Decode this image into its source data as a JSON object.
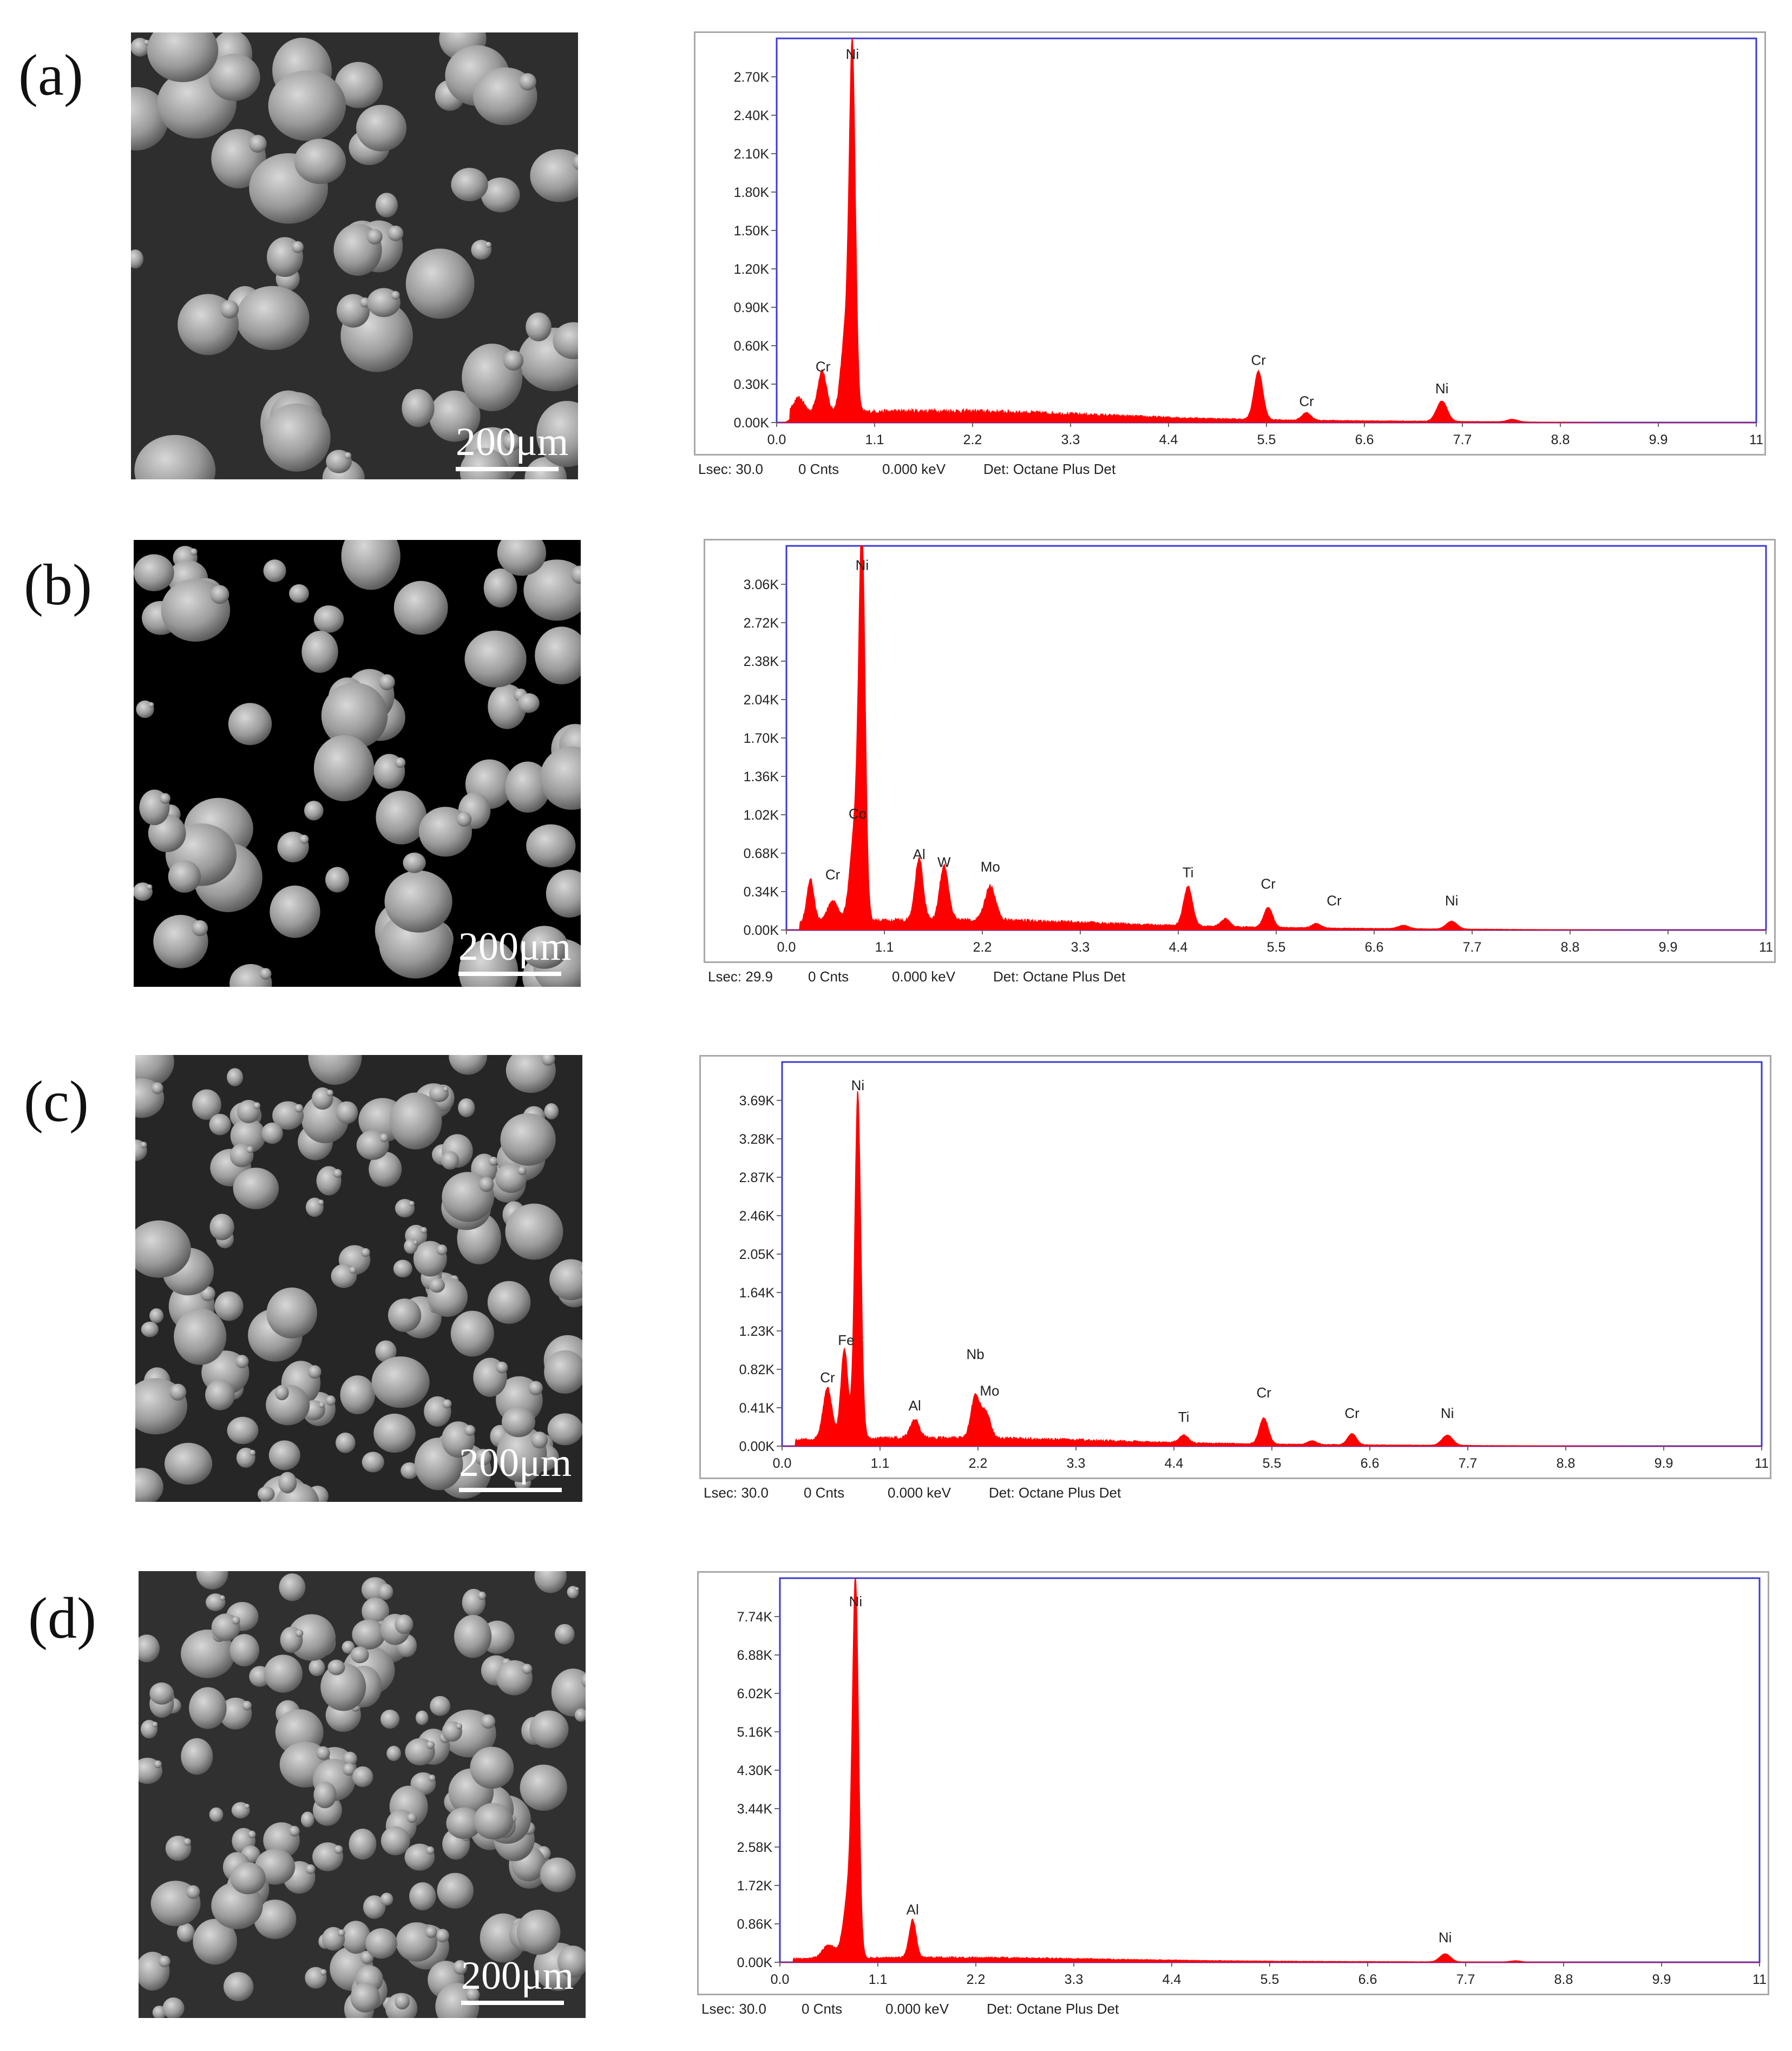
{
  "chart_data": [
    {
      "type": "area",
      "panel": "(a)",
      "x_ticks": [
        "0.0",
        "1.1",
        "2.2",
        "3.3",
        "4.4",
        "5.5",
        "6.6",
        "7.7",
        "8.8",
        "9.9",
        "11"
      ],
      "y_ticks": [
        "0.00K",
        "0.30K",
        "0.60K",
        "0.90K",
        "1.20K",
        "1.50K",
        "1.80K",
        "2.10K",
        "2.40K",
        "2.70K"
      ],
      "xlim": [
        0,
        11
      ],
      "ylim": [
        0,
        3.0
      ],
      "background": 0.1,
      "peaks": [
        {
          "x": 0.25,
          "y": 0.12,
          "w": 0.06
        },
        {
          "x": 0.51,
          "y": 0.33,
          "w": 0.05
        },
        {
          "x": 0.77,
          "y": 0.6,
          "w": 0.05
        },
        {
          "x": 0.85,
          "y": 2.78,
          "w": 0.035
        },
        {
          "x": 5.41,
          "y": 0.38,
          "w": 0.05
        },
        {
          "x": 5.95,
          "y": 0.06,
          "w": 0.05
        },
        {
          "x": 7.47,
          "y": 0.16,
          "w": 0.06
        },
        {
          "x": 8.26,
          "y": 0.02,
          "w": 0.06
        }
      ],
      "labels": [
        {
          "text": "Ni",
          "x": 0.85,
          "y": 2.78
        },
        {
          "text": "Cr",
          "x": 0.52,
          "y": 0.34
        },
        {
          "text": "Cr",
          "x": 5.41,
          "y": 0.39
        },
        {
          "text": "Cr",
          "x": 5.95,
          "y": 0.07
        },
        {
          "text": "Ni",
          "x": 7.47,
          "y": 0.17
        }
      ],
      "footer": {
        "lsec": "Lsec: 30.0",
        "cnts": "0 Cnts",
        "kev": "0.000 keV",
        "det": "Det: Octane Plus Det"
      },
      "scale_bar": "200μm"
    },
    {
      "type": "area",
      "panel": "(b)",
      "x_ticks": [
        "0.0",
        "1.1",
        "2.2",
        "3.3",
        "4.4",
        "5.5",
        "6.6",
        "7.7",
        "8.8",
        "9.9",
        "11"
      ],
      "y_ticks": [
        "0.00K",
        "0.34K",
        "0.68K",
        "1.02K",
        "1.36K",
        "1.70K",
        "2.04K",
        "2.38K",
        "2.72K",
        "3.06K"
      ],
      "xlim": [
        0,
        11
      ],
      "ylim": [
        0,
        3.4
      ],
      "background": 0.1,
      "peaks": [
        {
          "x": 0.27,
          "y": 0.38,
          "w": 0.04
        },
        {
          "x": 0.52,
          "y": 0.18,
          "w": 0.06
        },
        {
          "x": 0.78,
          "y": 0.9,
          "w": 0.06
        },
        {
          "x": 0.85,
          "y": 3.12,
          "w": 0.035
        },
        {
          "x": 1.49,
          "y": 0.55,
          "w": 0.045
        },
        {
          "x": 1.77,
          "y": 0.48,
          "w": 0.05
        },
        {
          "x": 2.29,
          "y": 0.3,
          "w": 0.06
        },
        {
          "x": 4.51,
          "y": 0.35,
          "w": 0.05
        },
        {
          "x": 4.93,
          "y": 0.07,
          "w": 0.05
        },
        {
          "x": 5.41,
          "y": 0.18,
          "w": 0.05
        },
        {
          "x": 5.95,
          "y": 0.04,
          "w": 0.05
        },
        {
          "x": 6.93,
          "y": 0.03,
          "w": 0.06
        },
        {
          "x": 7.47,
          "y": 0.07,
          "w": 0.06
        }
      ],
      "labels": [
        {
          "text": "Ni",
          "x": 0.85,
          "y": 3.12
        },
        {
          "text": "Co",
          "x": 0.8,
          "y": 0.92
        },
        {
          "text": "Cr",
          "x": 0.52,
          "y": 0.38
        },
        {
          "text": "Al",
          "x": 1.49,
          "y": 0.56
        },
        {
          "text": "W",
          "x": 1.77,
          "y": 0.49
        },
        {
          "text": "Mo",
          "x": 2.29,
          "y": 0.45
        },
        {
          "text": "Ti",
          "x": 4.51,
          "y": 0.4
        },
        {
          "text": "Cr",
          "x": 5.41,
          "y": 0.3
        },
        {
          "text": "Cr",
          "x": 6.15,
          "y": 0.15
        },
        {
          "text": "Ni",
          "x": 7.47,
          "y": 0.15
        }
      ],
      "footer": {
        "lsec": "Lsec: 29.9",
        "cnts": "0 Cnts",
        "kev": "0.000 keV",
        "det": "Det: Octane Plus Det"
      },
      "scale_bar": "200μm"
    },
    {
      "type": "area",
      "panel": "(c)",
      "x_ticks": [
        "0.0",
        "1.1",
        "2.2",
        "3.3",
        "4.4",
        "5.5",
        "6.6",
        "7.7",
        "8.8",
        "9.9",
        "11"
      ],
      "y_ticks": [
        "0.00K",
        "0.41K",
        "0.82K",
        "1.23K",
        "1.64K",
        "2.05K",
        "2.46K",
        "2.87K",
        "3.28K",
        "3.69K"
      ],
      "xlim": [
        0,
        11
      ],
      "ylim": [
        0,
        4.1
      ],
      "background": 0.1,
      "peaks": [
        {
          "x": 0.51,
          "y": 0.55,
          "w": 0.05
        },
        {
          "x": 0.7,
          "y": 0.97,
          "w": 0.04
        },
        {
          "x": 0.85,
          "y": 3.72,
          "w": 0.035
        },
        {
          "x": 1.49,
          "y": 0.2,
          "w": 0.05
        },
        {
          "x": 2.17,
          "y": 0.45,
          "w": 0.05
        },
        {
          "x": 2.29,
          "y": 0.28,
          "w": 0.05
        },
        {
          "x": 4.51,
          "y": 0.08,
          "w": 0.05
        },
        {
          "x": 5.41,
          "y": 0.28,
          "w": 0.05
        },
        {
          "x": 5.95,
          "y": 0.04,
          "w": 0.05
        },
        {
          "x": 6.4,
          "y": 0.12,
          "w": 0.05
        },
        {
          "x": 7.47,
          "y": 0.11,
          "w": 0.06
        }
      ],
      "labels": [
        {
          "text": "Ni",
          "x": 0.85,
          "y": 3.72
        },
        {
          "text": "Fe",
          "x": 0.72,
          "y": 1.0
        },
        {
          "text": "Cr",
          "x": 0.51,
          "y": 0.6
        },
        {
          "text": "Al",
          "x": 1.49,
          "y": 0.3
        },
        {
          "text": "Nb",
          "x": 2.17,
          "y": 0.85
        },
        {
          "text": "Mo",
          "x": 2.33,
          "y": 0.46
        },
        {
          "text": "Ti",
          "x": 4.51,
          "y": 0.18
        },
        {
          "text": "Cr",
          "x": 5.41,
          "y": 0.44
        },
        {
          "text": "Cr",
          "x": 6.4,
          "y": 0.22
        },
        {
          "text": "Ni",
          "x": 7.47,
          "y": 0.22
        }
      ],
      "footer": {
        "lsec": "Lsec: 30.0",
        "cnts": "0 Cnts",
        "kev": "0.000 keV",
        "det": "Det: Octane Plus Det"
      },
      "scale_bar": "200μm"
    },
    {
      "type": "area",
      "panel": "(d)",
      "x_ticks": [
        "0.0",
        "1.1",
        "2.2",
        "3.3",
        "4.4",
        "5.5",
        "6.6",
        "7.7",
        "8.8",
        "9.9",
        "11"
      ],
      "y_ticks": [
        "0.00K",
        "0.86K",
        "1.72K",
        "2.58K",
        "3.44K",
        "4.30K",
        "5.16K",
        "6.02K",
        "6.88K",
        "7.74K"
      ],
      "xlim": [
        0,
        11
      ],
      "ylim": [
        0,
        8.6
      ],
      "background": 0.12,
      "peaks": [
        {
          "x": 0.55,
          "y": 0.3,
          "w": 0.07
        },
        {
          "x": 0.78,
          "y": 1.6,
          "w": 0.06
        },
        {
          "x": 0.85,
          "y": 7.8,
          "w": 0.035
        },
        {
          "x": 1.49,
          "y": 0.85,
          "w": 0.04
        },
        {
          "x": 7.47,
          "y": 0.18,
          "w": 0.06
        },
        {
          "x": 8.26,
          "y": 0.03,
          "w": 0.06
        }
      ],
      "labels": [
        {
          "text": "Ni",
          "x": 0.85,
          "y": 7.8
        },
        {
          "text": "Al",
          "x": 1.49,
          "y": 0.9
        },
        {
          "text": "Ni",
          "x": 7.47,
          "y": 0.28
        }
      ],
      "footer": {
        "lsec": "Lsec: 30.0",
        "cnts": "0 Cnts",
        "kev": "0.000 keV",
        "det": "Det: Octane Plus Det"
      },
      "scale_bar": "200μm"
    }
  ],
  "colors": {
    "spectrum": "#ff0000",
    "frame": "#3a3ad8",
    "axis": "#666666",
    "text": "#222222"
  }
}
